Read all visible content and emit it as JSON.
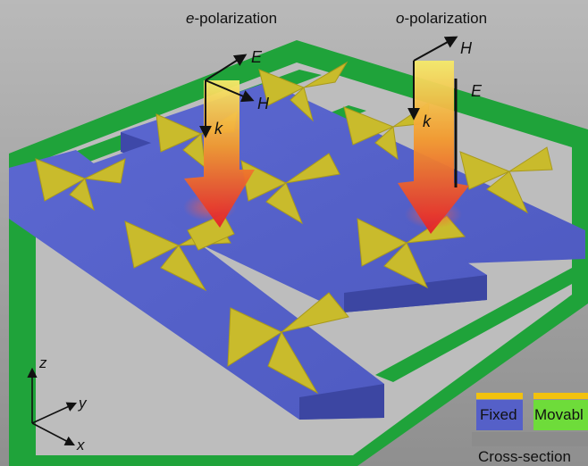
{
  "titles": {
    "e_prefix": "e",
    "e_suffix": "-polarization",
    "o_prefix": "o",
    "o_suffix": "-polarization"
  },
  "vector_labels": {
    "e_E": "E",
    "e_H": "H",
    "e_k": "k",
    "o_H": "H",
    "o_E": "E",
    "o_k": "k"
  },
  "axes": {
    "z": "z",
    "y": "y",
    "x": "x"
  },
  "legend": {
    "fixed": "Fixed",
    "movable": "Movabl",
    "cross_section": "Cross-section"
  },
  "colors": {
    "background": "#9a9a9a",
    "frame_green": "#1fa33a",
    "trench_gray": "#c8c8c8",
    "fixed_blue": "#5560c8",
    "antenna_gold": "#c9bb2c",
    "arrow_red": "#e8262a",
    "arrow_yellow": "#f4e64a",
    "legend_gold": "#f2c20e",
    "legend_green": "#6edc3a"
  }
}
